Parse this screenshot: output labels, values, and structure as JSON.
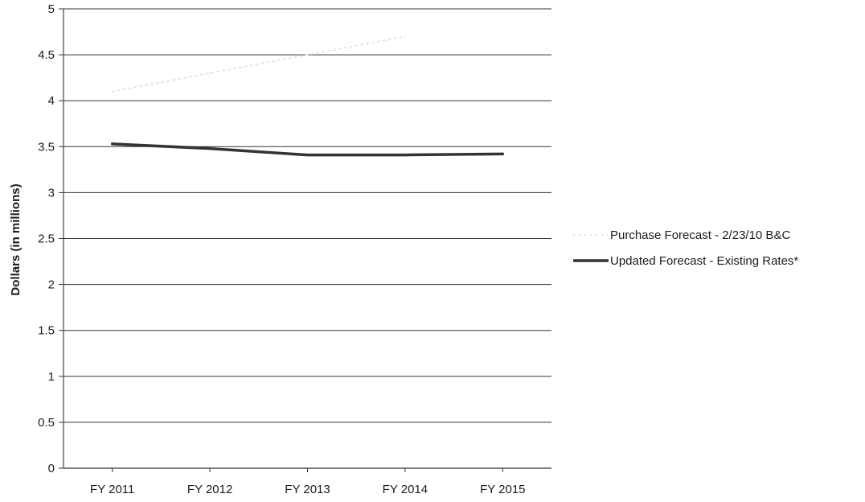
{
  "chart_data": {
    "type": "line",
    "title": "",
    "xlabel": "",
    "ylabel": "Dollars (in millions)",
    "categories": [
      "FY 2011",
      "FY 2012",
      "FY 2013",
      "FY 2014",
      "FY 2015"
    ],
    "ylim": [
      0,
      5
    ],
    "yticks": [
      "0",
      "0.5",
      "1",
      "1.5",
      "2",
      "2.5",
      "3",
      "3.5",
      "4",
      "4.5",
      "5"
    ],
    "grid": true,
    "legend_position": "right",
    "series": [
      {
        "name": "Purchase Forecast - 2/23/10 B&C",
        "values": [
          4.1,
          4.3,
          4.5,
          4.7,
          null
        ],
        "color": "#e4e4e4",
        "style": "dotted"
      },
      {
        "name": "Updated Forecast - Existing Rates*",
        "values": [
          3.53,
          3.48,
          3.41,
          3.41,
          3.42
        ],
        "color": "#333333",
        "style": "solid"
      }
    ]
  }
}
